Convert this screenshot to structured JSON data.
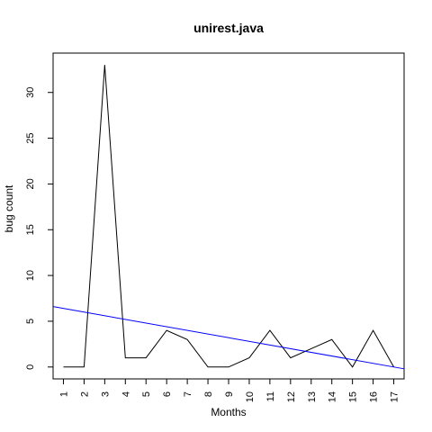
{
  "chart_data": {
    "type": "line",
    "title": "unirest.java",
    "xlabel": "Months",
    "ylabel": "bug count",
    "categories": [
      "1",
      "2",
      "3",
      "4",
      "5",
      "6",
      "7",
      "8",
      "9",
      "10",
      "11",
      "12",
      "13",
      "14",
      "15",
      "16",
      "17"
    ],
    "series": [
      {
        "values": [
          0,
          0,
          33,
          1,
          1,
          4,
          3,
          0,
          0,
          1,
          4,
          1,
          2,
          3,
          0,
          4,
          0
        ],
        "color": "#000000"
      }
    ],
    "trend_line": {
      "intercept": 6.8,
      "slope": -0.4,
      "color": "#0000ff"
    },
    "xlim": [
      0.5,
      17.5
    ],
    "ylim": [
      -1.3,
      34.3
    ],
    "yticks": [
      0,
      5,
      10,
      15,
      20,
      25,
      30
    ],
    "grid": false,
    "legend": "none"
  }
}
